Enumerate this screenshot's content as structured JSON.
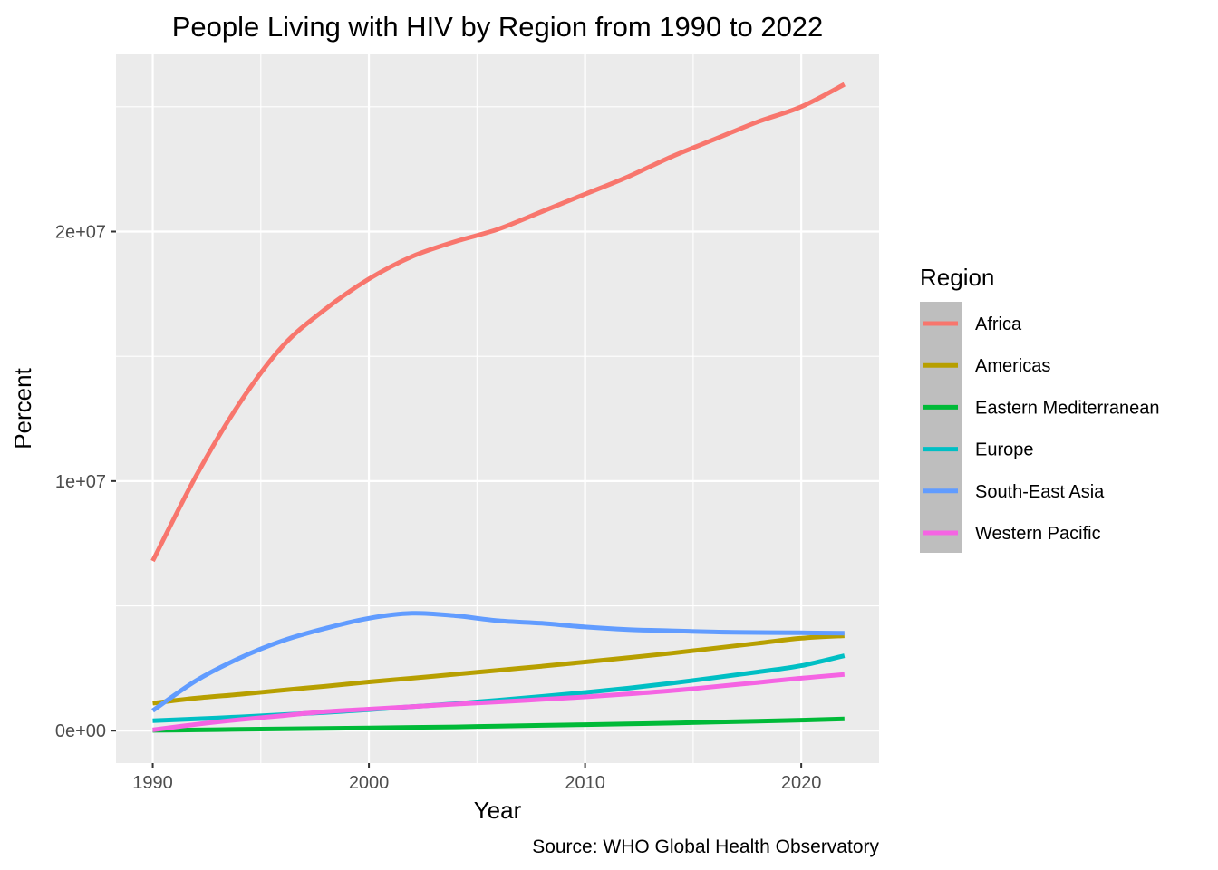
{
  "chart_data": {
    "type": "line",
    "title": "People Living with HIV by Region from 1990 to 2022",
    "xlabel": "Year",
    "ylabel": "Percent",
    "caption": "Source: WHO Global Health Observatory",
    "xlim": [
      1988.3,
      2023.6
    ],
    "ylim": [
      -1300000,
      27100000
    ],
    "x_ticks": [
      1990,
      2000,
      2010,
      2020
    ],
    "x_tick_labels": [
      "1990",
      "2000",
      "2010",
      "2020"
    ],
    "y_ticks": [
      0,
      10000000,
      20000000
    ],
    "y_tick_labels": [
      "0e+00",
      "1e+07",
      "2e+07"
    ],
    "x_minor_ticks": [
      1995,
      2005,
      2015
    ],
    "y_minor_ticks": [
      5000000,
      15000000,
      25000000
    ],
    "grid": true,
    "legend": {
      "title": "Region",
      "position": "right"
    },
    "x": [
      1990,
      1992,
      1994,
      1996,
      1998,
      2000,
      2002,
      2004,
      2006,
      2008,
      2010,
      2012,
      2014,
      2016,
      2018,
      2020,
      2022
    ],
    "series": [
      {
        "name": "Africa",
        "color": "#F8766D",
        "values": [
          6800000,
          10200000,
          13100000,
          15400000,
          16900000,
          18100000,
          19000000,
          19600000,
          20100000,
          20800000,
          21500000,
          22200000,
          23000000,
          23700000,
          24400000,
          25000000,
          25900000
        ]
      },
      {
        "name": "Americas",
        "color": "#B79F00",
        "values": [
          1100000,
          1300000,
          1450000,
          1620000,
          1780000,
          1950000,
          2100000,
          2260000,
          2420000,
          2580000,
          2750000,
          2920000,
          3100000,
          3300000,
          3500000,
          3700000,
          3800000
        ]
      },
      {
        "name": "Eastern Mediterranean",
        "color": "#00BA38",
        "values": [
          10000,
          30000,
          50000,
          70000,
          90000,
          110000,
          130000,
          150000,
          180000,
          210000,
          240000,
          270000,
          300000,
          340000,
          380000,
          420000,
          470000
        ]
      },
      {
        "name": "Europe",
        "color": "#00BFC4",
        "values": [
          400000,
          470000,
          550000,
          640000,
          730000,
          840000,
          960000,
          1080000,
          1220000,
          1370000,
          1530000,
          1700000,
          1900000,
          2120000,
          2350000,
          2600000,
          3000000
        ]
      },
      {
        "name": "South-East Asia",
        "color": "#619CFF",
        "values": [
          800000,
          2000000,
          2900000,
          3600000,
          4100000,
          4500000,
          4700000,
          4600000,
          4400000,
          4300000,
          4150000,
          4050000,
          4000000,
          3950000,
          3930000,
          3920000,
          3900000
        ]
      },
      {
        "name": "Western Pacific",
        "color": "#F564E3",
        "values": [
          30000,
          250000,
          440000,
          600000,
          760000,
          860000,
          960000,
          1060000,
          1150000,
          1250000,
          1350000,
          1470000,
          1600000,
          1760000,
          1930000,
          2100000,
          2250000
        ]
      }
    ]
  }
}
